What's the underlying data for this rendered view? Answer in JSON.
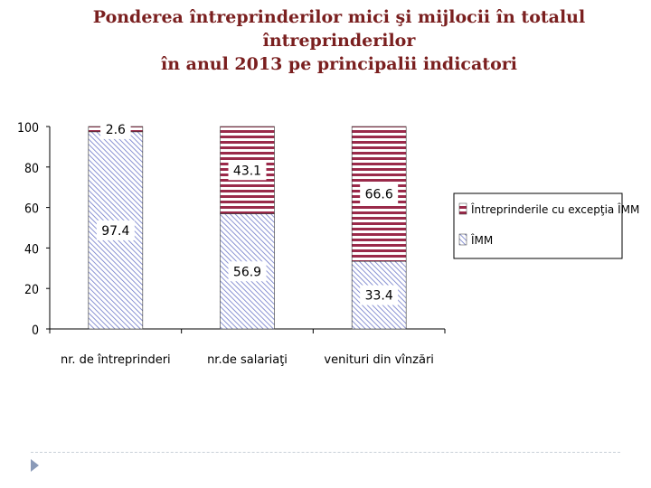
{
  "title": {
    "line1": "Ponderea întreprinderilor mici şi mijlocii în totalul",
    "line2": "întreprinderilor",
    "line3": "în anul 2013 pe principalii indicatori"
  },
  "chart_data": {
    "type": "bar",
    "stacked": true,
    "title": "",
    "xlabel": "",
    "ylabel": "",
    "categories": [
      "nr. de întreprinderi",
      "nr.de salariaţi",
      "venituri din vînzări"
    ],
    "series": [
      {
        "name": "ÎMM",
        "values": [
          97.4,
          56.9,
          33.4
        ],
        "pattern": "diagonal-hatch",
        "color": "#6d78c8"
      },
      {
        "name": "Întreprinderile cu excepţia ÎMM",
        "values": [
          2.6,
          43.1,
          66.6
        ],
        "pattern": "horizontal-stripes",
        "color": "#9a2a4a"
      }
    ],
    "ylim": [
      0,
      100
    ],
    "yticks": [
      "0",
      "20",
      "40",
      "60",
      "80",
      "100"
    ],
    "grid": false,
    "legend": "right"
  }
}
